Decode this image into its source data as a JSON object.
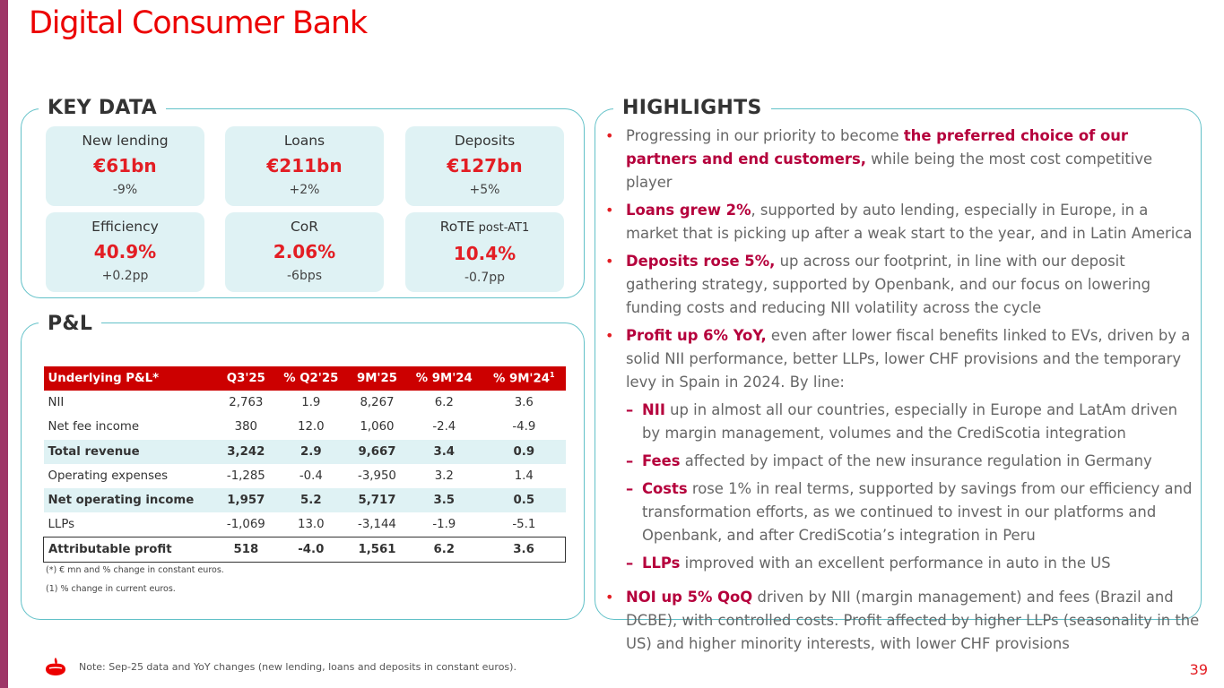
{
  "title": "Digital Consumer Bank",
  "sections": {
    "key_data": "KEY DATA",
    "pl": "P&L",
    "highlights": "HIGHLIGHTS"
  },
  "key_data": [
    {
      "label": "New lending",
      "label_suffix": "",
      "value": "€61bn",
      "change": "-9%"
    },
    {
      "label": "Loans",
      "label_suffix": "",
      "value": "€211bn",
      "change": "+2%"
    },
    {
      "label": "Deposits",
      "label_suffix": "",
      "value": "€127bn",
      "change": "+5%"
    },
    {
      "label": "Efficiency",
      "label_suffix": "",
      "value": "40.9%",
      "change": "+0.2pp"
    },
    {
      "label": "CoR",
      "label_suffix": "",
      "value": "2.06%",
      "change": "-6bps"
    },
    {
      "label": "RoTE",
      "label_suffix": " post-AT1",
      "value": "10.4%",
      "change": "-0.7pp"
    }
  ],
  "pl_table": {
    "headers": [
      "Underlying P&L*",
      "Q3'25",
      "% Q2'25",
      "9M'25",
      "% 9M'24",
      "% 9M'24"
    ],
    "header_sup": "1",
    "rows": [
      [
        "NII",
        "2,763",
        "1.9",
        "8,267",
        "6.2",
        "3.6"
      ],
      [
        "Net fee income",
        "380",
        "12.0",
        "1,060",
        "-2.4",
        "-4.9"
      ],
      [
        "Total revenue",
        "3,242",
        "2.9",
        "9,667",
        "3.4",
        "0.9"
      ],
      [
        "Operating expenses",
        "-1,285",
        "-0.4",
        "-3,950",
        "3.2",
        "1.4"
      ],
      [
        "Net operating income",
        "1,957",
        "5.2",
        "5,717",
        "3.5",
        "0.5"
      ],
      [
        "LLPs",
        "-1,069",
        "13.0",
        "-3,144",
        "-1.9",
        "-5.1"
      ],
      [
        "Attributable profit",
        "518",
        "-4.0",
        "1,561",
        "6.2",
        "3.6"
      ]
    ],
    "footnotes": [
      "(*) € mn and % change in constant euros.",
      "(1)  % change in current euros."
    ]
  },
  "highlights": [
    {
      "pre": "Progressing in our priority to become ",
      "bold": "the preferred choice of our partners and end customers,",
      "post": " while being the most cost competitive player"
    },
    {
      "pre": "",
      "bold": "Loans grew 2%",
      "post": ", supported by auto lending, especially in Europe, in a market that is picking up after a weak start to the year, and in Latin America"
    },
    {
      "pre": "",
      "bold": "Deposits rose 5%,",
      "post": " up across our footprint, in line with our deposit gathering strategy, supported by Openbank, and our focus on lowering funding costs and reducing NII volatility across the cycle"
    },
    {
      "pre": "",
      "bold": "Profit up 6% YoY,",
      "post": " even after lower fiscal benefits linked to EVs, driven by a solid NII performance, better LLPs, lower CHF provisions and the temporary levy in Spain in 2024. By line:"
    },
    {
      "pre": "",
      "bold": "NOI up 5% QoQ",
      "post": " driven by NII (margin management) and fees (Brazil and DCBE), with controlled costs. Profit affected by higher LLPs (seasonality in the US) and higher minority interests, with lower CHF provisions"
    }
  ],
  "sub_highlights": [
    {
      "bold": "NII",
      "post": " up in almost all our countries, especially in Europe and LatAm driven by margin management, volumes and the CrediScotia integration"
    },
    {
      "bold": "Fees",
      "post": " affected by impact of the new insurance regulation in Germany"
    },
    {
      "bold": "Costs",
      "post": " rose 1% in real terms, supported by savings from our efficiency and transformation efforts, as we continued to invest in our platforms and Openbank, and after CrediScotia’s integration in Peru"
    },
    {
      "bold": "LLPs",
      "post": " improved with an excellent performance in auto in the US"
    }
  ],
  "footer": {
    "note": "Note: Sep-25 data and YoY changes (new lending, loans and deposits in constant euros).",
    "page": "39",
    "logo_icon": "santander-flame-icon"
  },
  "colors": {
    "brand_red": "#ec0000",
    "teal_border": "#62c1c8",
    "card_bg": "#dff2f4",
    "accent_bar": "#9e3667"
  }
}
